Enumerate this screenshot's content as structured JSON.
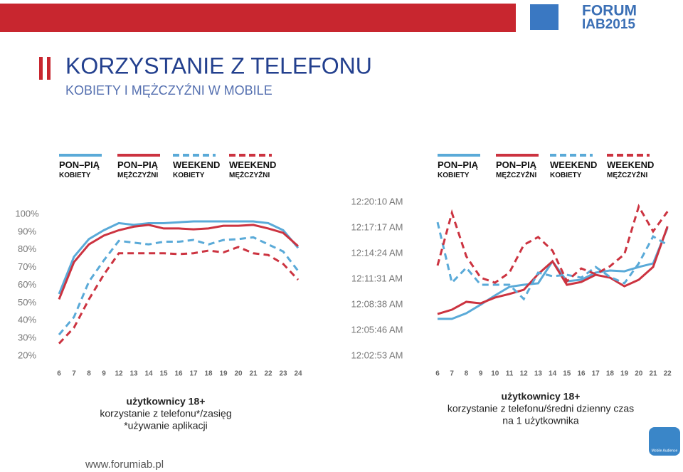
{
  "header": {
    "title": "KORZYSTANIE Z TELEFONU",
    "subtitle": "KOBIETY I MĘŻCZYŹNI W MOBILE",
    "logo_top": "FORUM",
    "logo_bottom": "IAB2015",
    "footer": "www.forumiab.pl",
    "badge": "Mobile Audience"
  },
  "chart_data": [
    {
      "type": "line",
      "categories": [
        "6",
        "7",
        "8",
        "9",
        "12",
        "13",
        "14",
        "15",
        "16",
        "17",
        "18",
        "19",
        "20",
        "21",
        "22",
        "23",
        "24"
      ],
      "ylim": [
        20,
        100
      ],
      "yticks": [
        {
          "value": 20,
          "label": "20%"
        },
        {
          "value": 30,
          "label": "30%"
        },
        {
          "value": 40,
          "label": "40%"
        },
        {
          "value": 50,
          "label": "50%"
        },
        {
          "value": 60,
          "label": "60%"
        },
        {
          "value": 70,
          "label": "70%"
        },
        {
          "value": 80,
          "label": "80%"
        },
        {
          "value": 90,
          "label": "90%"
        },
        {
          "value": 100,
          "label": "100%"
        }
      ],
      "grid": false,
      "series": [
        {
          "name": "PON–PIĄ KOBIETY",
          "color": "#5aaad8",
          "dashed": false,
          "values": [
            55,
            76,
            86,
            91,
            95,
            94,
            95,
            95,
            95.5,
            96,
            96,
            96,
            96,
            96,
            95,
            91,
            81
          ]
        },
        {
          "name": "PON–PIĄ MĘŻCZYŹNI",
          "color": "#cc3340",
          "dashed": false,
          "values": [
            52,
            73,
            83,
            88,
            91,
            93,
            94,
            92,
            92,
            91.5,
            92,
            93.5,
            93.5,
            94,
            92,
            89.5,
            82
          ]
        },
        {
          "name": "WEEKEND KOBIETY",
          "color": "#5aaad8",
          "dashed": true,
          "values": [
            32,
            42,
            62,
            74,
            85,
            84,
            83,
            84.5,
            84.5,
            85.5,
            83,
            85.5,
            86,
            87,
            83,
            79,
            68
          ]
        },
        {
          "name": "WEEKEND MĘŻCZYŹNI",
          "color": "#cc3340",
          "dashed": true,
          "values": [
            27,
            36,
            52,
            66,
            78,
            78,
            78,
            78,
            77.5,
            78,
            79.5,
            78.5,
            81.5,
            78,
            77,
            72,
            63
          ]
        }
      ],
      "caption": [
        "użytkownicy 18+",
        "korzystanie z telefonu*/zasięg",
        "*używanie aplikacji"
      ]
    },
    {
      "type": "line",
      "categories": [
        "6",
        "7",
        "8",
        "9",
        "10",
        "11",
        "12",
        "13",
        "14",
        "15",
        "16",
        "17",
        "18",
        "19",
        "20",
        "21",
        "22"
      ],
      "ylim": [
        173,
        1210
      ],
      "yticks": [
        {
          "value": 173,
          "label": "12:02:53 AM"
        },
        {
          "value": 346,
          "label": "12:05:46 AM"
        },
        {
          "value": 518,
          "label": "12:08:38 AM"
        },
        {
          "value": 691,
          "label": "12:11:31 AM"
        },
        {
          "value": 864,
          "label": "12:14:24 AM"
        },
        {
          "value": 1037,
          "label": "12:17:17 AM"
        },
        {
          "value": 1210,
          "label": "12:20:10 AM"
        }
      ],
      "grid": false,
      "series": [
        {
          "name": "PON–PIĄ KOBIETY",
          "color": "#5aaad8",
          "dashed": false,
          "values": [
            423,
            423,
            461,
            519,
            581,
            639,
            653,
            663,
            811,
            677,
            687,
            735,
            749,
            744,
            773,
            797,
            1037
          ]
        },
        {
          "name": "PON–PIĄ MĘŻCZYŹNI",
          "color": "#cc3340",
          "dashed": false,
          "values": [
            456,
            485,
            538,
            528,
            567,
            591,
            619,
            725,
            811,
            653,
            672,
            720,
            701,
            643,
            687,
            773,
            1047
          ]
        },
        {
          "name": "WEEKEND KOBIETY",
          "color": "#5aaad8",
          "dashed": true,
          "values": [
            1075,
            667,
            768,
            653,
            653,
            653,
            557,
            735,
            711,
            720,
            701,
            773,
            706,
            663,
            797,
            979,
            922
          ]
        },
        {
          "name": "WEEKEND MĘŻCZYŹNI",
          "color": "#cc3340",
          "dashed": true,
          "values": [
            783,
            1138,
            845,
            701,
            667,
            735,
            922,
            975,
            883,
            677,
            763,
            725,
            778,
            859,
            1181,
            1013,
            1147
          ]
        }
      ],
      "caption": [
        "użytkownicy 18+",
        "korzystanie z telefonu/średni dzienny czas",
        "na 1 użytkownika"
      ]
    }
  ]
}
